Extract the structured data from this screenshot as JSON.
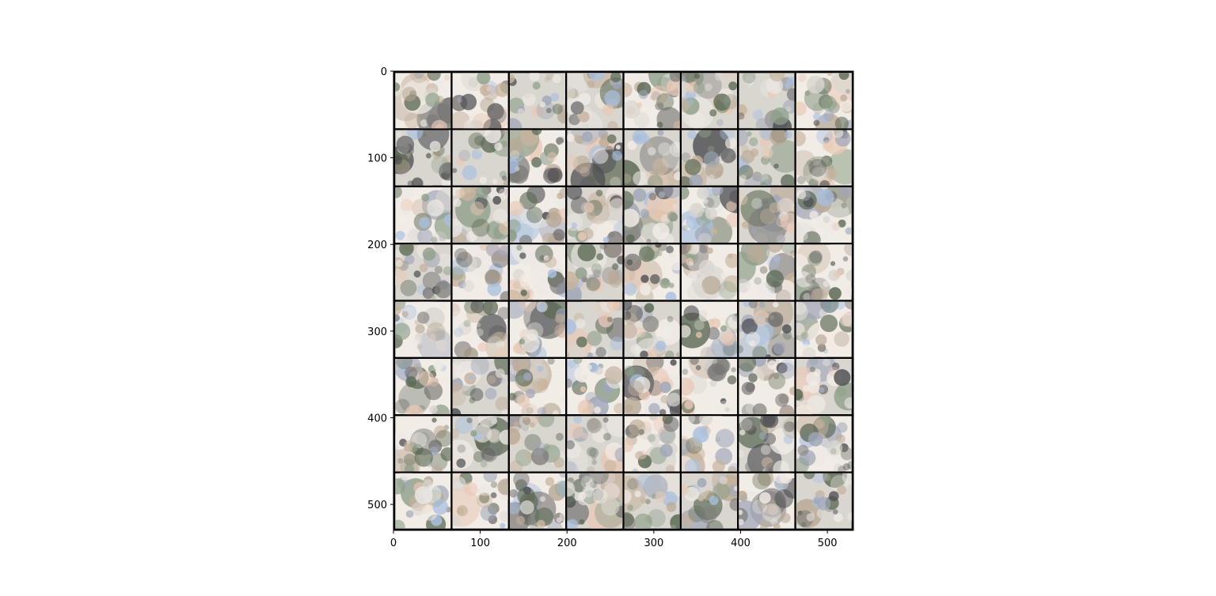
{
  "chart_data": {
    "type": "heatmap",
    "description_kind": "image grid",
    "title": "",
    "xlabel": "",
    "ylabel": "",
    "xlim": [
      0,
      530
    ],
    "ylim": [
      530,
      0
    ],
    "xticks": [
      0,
      100,
      200,
      300,
      400,
      500
    ],
    "yticks": [
      0,
      100,
      200,
      300,
      400,
      500
    ],
    "xtick_labels": [
      "0",
      "100",
      "200",
      "300",
      "400",
      "500"
    ],
    "ytick_labels": [
      "0",
      "100",
      "200",
      "300",
      "400",
      "500"
    ],
    "grid": false,
    "image_grid": {
      "rows": 8,
      "cols": 8,
      "tile_size": 64,
      "padding": 2,
      "border_color": "#000000"
    }
  },
  "colors": {
    "background": "#ffffff",
    "axis": "#000000",
    "palette": [
      "#d9d6d0",
      "#f2ece6",
      "#7c7a78",
      "#4f4f53",
      "#b9a995",
      "#c7b39d",
      "#a9c0df",
      "#8fa08a",
      "#e9c9b6",
      "#9fa6b8",
      "#5c6a55",
      "#ece8e4"
    ]
  }
}
